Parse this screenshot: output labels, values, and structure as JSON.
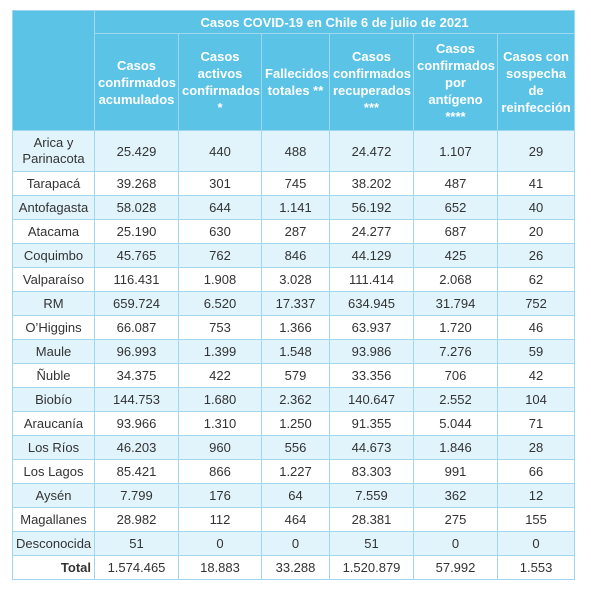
{
  "table": {
    "title": "Casos COVID-19 en Chile 6 de julio de 2021",
    "headers": [
      "Casos confirmados acumulados",
      "Casos activos confirmados *",
      "Fallecidos totales **",
      "Casos confirmados recuperados ***",
      "Casos confirmados por antígeno ****",
      "Casos con sospecha de reinfección"
    ],
    "rows": [
      [
        "Arica y Parinacota",
        "25.429",
        "440",
        "488",
        "24.472",
        "1.107",
        "29"
      ],
      [
        "Tarapacá",
        "39.268",
        "301",
        "745",
        "38.202",
        "487",
        "41"
      ],
      [
        "Antofagasta",
        "58.028",
        "644",
        "1.141",
        "56.192",
        "652",
        "40"
      ],
      [
        "Atacama",
        "25.190",
        "630",
        "287",
        "24.277",
        "687",
        "20"
      ],
      [
        "Coquimbo",
        "45.765",
        "762",
        "846",
        "44.129",
        "425",
        "26"
      ],
      [
        "Valparaíso",
        "116.431",
        "1.908",
        "3.028",
        "111.414",
        "2.068",
        "62"
      ],
      [
        "RM",
        "659.724",
        "6.520",
        "17.337",
        "634.945",
        "31.794",
        "752"
      ],
      [
        "O’Higgins",
        "66.087",
        "753",
        "1.366",
        "63.937",
        "1.720",
        "46"
      ],
      [
        "Maule",
        "96.993",
        "1.399",
        "1.548",
        "93.986",
        "7.276",
        "59"
      ],
      [
        "Ñuble",
        "34.375",
        "422",
        "579",
        "33.356",
        "706",
        "42"
      ],
      [
        "Biobío",
        "144.753",
        "1.680",
        "2.362",
        "140.647",
        "2.552",
        "104"
      ],
      [
        "Araucanía",
        "93.966",
        "1.310",
        "1.250",
        "91.355",
        "5.044",
        "71"
      ],
      [
        "Los Ríos",
        "46.203",
        "960",
        "556",
        "44.673",
        "1.846",
        "28"
      ],
      [
        "Los Lagos",
        "85.421",
        "866",
        "1.227",
        "83.303",
        "991",
        "66"
      ],
      [
        "Aysén",
        "7.799",
        "176",
        "64",
        "7.559",
        "362",
        "12"
      ],
      [
        "Magallanes",
        "28.982",
        "112",
        "464",
        "28.381",
        "275",
        "155"
      ],
      [
        "Desconocida",
        "51",
        "0",
        "0",
        "51",
        "0",
        "0"
      ]
    ],
    "total": [
      "Total",
      "1.574.465",
      "18.883",
      "33.288",
      "1.520.879",
      "57.992",
      "1.553"
    ]
  }
}
